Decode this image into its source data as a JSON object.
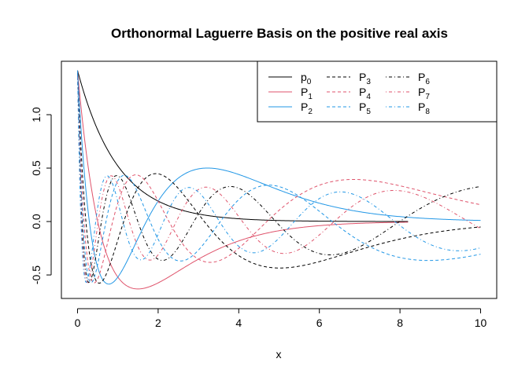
{
  "chart_data": {
    "type": "line",
    "title": "Orthonormal Laguerre Basis on the positive real axis",
    "xlabel": "x",
    "ylabel": "",
    "xlim": [
      -0.4,
      10.4
    ],
    "ylim": [
      -0.72,
      1.5
    ],
    "x_ticks": [
      0,
      2,
      4,
      6,
      8,
      10
    ],
    "y_ticks": [
      -0.5,
      0.0,
      0.5,
      1.0
    ],
    "x_tick_labels": [
      "0",
      "2",
      "4",
      "6",
      "8",
      "10"
    ],
    "y_tick_labels": [
      "-0.5",
      "0.0",
      "0.5",
      "1.0"
    ],
    "grid": false,
    "legend_position": "top-right",
    "legend_columns": 3,
    "formula": "p_n(x) = sqrt(2) * exp(-x) * L_n(2x)",
    "x_range": [
      0,
      10
    ],
    "sample_count": 401,
    "series": [
      {
        "name": "p",
        "subscript": "0",
        "n": 0,
        "color": "#000000",
        "dash": "solid",
        "x_end": 8.2
      },
      {
        "name": "P",
        "subscript": "1",
        "n": 1,
        "color": "#DF536B",
        "dash": "solid",
        "x_end": 8.2
      },
      {
        "name": "P",
        "subscript": "2",
        "n": 2,
        "color": "#2297E6",
        "dash": "solid",
        "x_end": 10
      },
      {
        "name": "P",
        "subscript": "3",
        "n": 3,
        "color": "#000000",
        "dash": "dashed",
        "x_end": 10
      },
      {
        "name": "P",
        "subscript": "4",
        "n": 4,
        "color": "#DF536B",
        "dash": "dashed",
        "x_end": 10
      },
      {
        "name": "P",
        "subscript": "5",
        "n": 5,
        "color": "#2297E6",
        "dash": "dashed",
        "x_end": 10
      },
      {
        "name": "P",
        "subscript": "6",
        "n": 6,
        "color": "#000000",
        "dash": "dotdash",
        "x_end": 10
      },
      {
        "name": "P",
        "subscript": "7",
        "n": 7,
        "color": "#DF536B",
        "dash": "dotdash",
        "x_end": 10
      },
      {
        "name": "P",
        "subscript": "8",
        "n": 8,
        "color": "#2297E6",
        "dash": "dotdash",
        "x_end": 10
      }
    ]
  }
}
